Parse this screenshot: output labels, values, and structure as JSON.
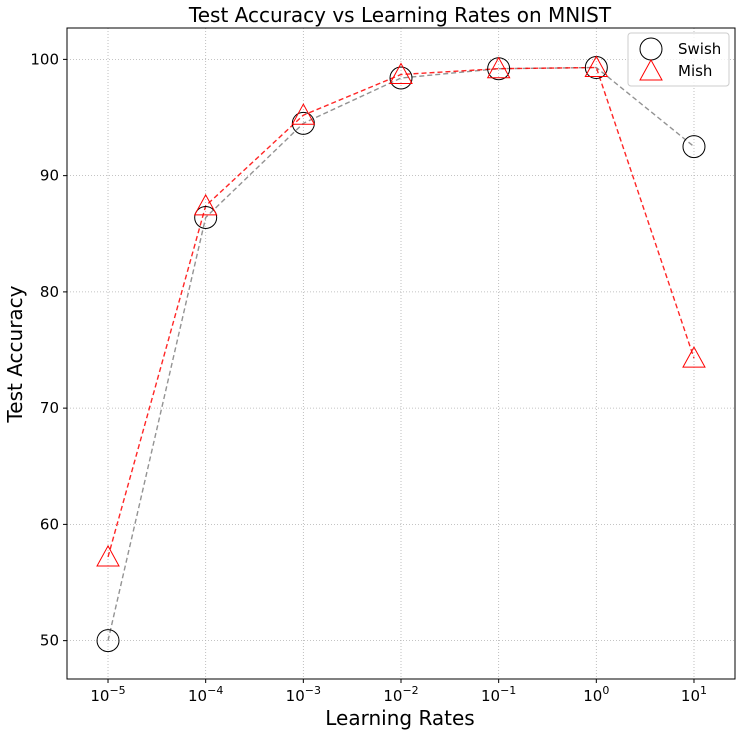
{
  "chart_data": {
    "type": "line",
    "title": "Test Accuracy vs Learning Rates on MNIST",
    "xlabel": "Learning Rates",
    "ylabel": "Test Accuracy",
    "x_scale": "log",
    "x_exponents": [
      -5,
      -4,
      -3,
      -2,
      -1,
      0,
      1
    ],
    "x_tick_labels": [
      {
        "base": "10",
        "exp": "−5"
      },
      {
        "base": "10",
        "exp": "−4"
      },
      {
        "base": "10",
        "exp": "−3"
      },
      {
        "base": "10",
        "exp": "−2"
      },
      {
        "base": "10",
        "exp": "−1"
      },
      {
        "base": "10",
        "exp": "0"
      },
      {
        "base": "10",
        "exp": "1"
      }
    ],
    "y_ticks": [
      "50",
      "60",
      "70",
      "80",
      "90",
      "100"
    ],
    "xlim": [
      -5.42,
      1.42
    ],
    "ylim": [
      46.7,
      102.7
    ],
    "grid": true,
    "legend_position": "top-right",
    "series": [
      {
        "name": "Swish",
        "marker": "circle",
        "marker_color": "#000000",
        "line_color": "#808080",
        "line_style": "dashed",
        "values": [
          50.0,
          86.4,
          94.5,
          98.4,
          99.2,
          99.3,
          92.5
        ]
      },
      {
        "name": "Mish",
        "marker": "triangle",
        "marker_color": "#ff0000",
        "line_color": "#ff0000",
        "line_style": "dashed",
        "values": [
          57.2,
          87.4,
          95.2,
          98.7,
          99.2,
          99.3,
          74.3
        ]
      }
    ]
  }
}
